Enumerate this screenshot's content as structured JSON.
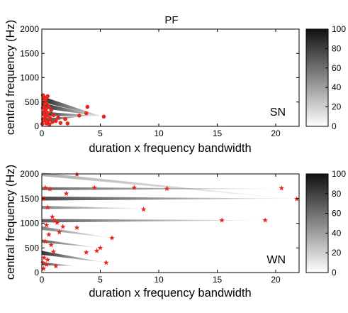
{
  "figure": {
    "title": "PF",
    "colorbar_ticks": [
      "100",
      "80",
      "60",
      "40",
      "20",
      "0"
    ]
  },
  "chart_data": [
    {
      "type": "scatter",
      "panel_label": "SN",
      "xlabel": "duration x frequency bandwidth",
      "ylabel": "central frequency (Hz)",
      "xlim": [
        0,
        22
      ],
      "ylim": [
        0,
        2000
      ],
      "xticks": [
        "0",
        "5",
        "10",
        "15",
        "20"
      ],
      "yticks": [
        "0",
        "500",
        "1000",
        "1500",
        "2000"
      ],
      "marker": "circle",
      "marker_color": "#e8261e",
      "density_shading": "grayscale 0-100",
      "wedges": [
        {
          "from": [
            0,
            560
          ],
          "to": [
            5.3,
            190
          ],
          "width": 120,
          "level": 96
        },
        {
          "from": [
            0,
            430
          ],
          "to": [
            5.2,
            200
          ],
          "width": 110,
          "level": 95
        },
        {
          "from": [
            0,
            260
          ],
          "to": [
            5.0,
            210
          ],
          "width": 90,
          "level": 92
        },
        {
          "from": [
            0,
            120
          ],
          "to": [
            4.0,
            230
          ],
          "width": 80,
          "level": 90
        }
      ],
      "points": [
        {
          "x": 0.1,
          "y": 640
        },
        {
          "x": 0.2,
          "y": 600
        },
        {
          "x": 0.3,
          "y": 560
        },
        {
          "x": 0.5,
          "y": 620
        },
        {
          "x": 0.15,
          "y": 520
        },
        {
          "x": 0.4,
          "y": 480
        },
        {
          "x": 0.25,
          "y": 430
        },
        {
          "x": 0.6,
          "y": 400
        },
        {
          "x": 0.1,
          "y": 380
        },
        {
          "x": 0.35,
          "y": 350
        },
        {
          "x": 0.8,
          "y": 330
        },
        {
          "x": 0.2,
          "y": 300
        },
        {
          "x": 0.5,
          "y": 280
        },
        {
          "x": 0.15,
          "y": 250
        },
        {
          "x": 0.45,
          "y": 220
        },
        {
          "x": 0.3,
          "y": 190
        },
        {
          "x": 0.7,
          "y": 170
        },
        {
          "x": 0.1,
          "y": 150
        },
        {
          "x": 0.25,
          "y": 120
        },
        {
          "x": 0.5,
          "y": 100
        },
        {
          "x": 0.9,
          "y": 90
        },
        {
          "x": 1.2,
          "y": 110
        },
        {
          "x": 0.4,
          "y": 60
        },
        {
          "x": 1.6,
          "y": 70
        },
        {
          "x": 2.2,
          "y": 60
        },
        {
          "x": 1.0,
          "y": 230
        },
        {
          "x": 3.2,
          "y": 220
        },
        {
          "x": 3.8,
          "y": 270
        },
        {
          "x": 3.9,
          "y": 400
        },
        {
          "x": 5.3,
          "y": 200
        },
        {
          "x": 2.0,
          "y": 150
        },
        {
          "x": 1.4,
          "y": 180
        },
        {
          "x": 0.05,
          "y": 50
        },
        {
          "x": 0.65,
          "y": 40
        }
      ]
    },
    {
      "type": "scatter",
      "panel_label": "WN",
      "xlabel": "duration x frequency bandwidth",
      "ylabel": "central frequency (Hz)",
      "xlim": [
        0,
        22
      ],
      "ylim": [
        0,
        2000
      ],
      "xticks": [
        "0",
        "5",
        "10",
        "15",
        "20"
      ],
      "yticks": [
        "0",
        "500",
        "1000",
        "1500",
        "2000"
      ],
      "marker": "star",
      "marker_color": "#e8261e",
      "density_shading": "grayscale 0-100",
      "wedges": [
        {
          "from": [
            0,
            1990
          ],
          "to": [
            22,
            1480
          ],
          "width": 70,
          "level": 35
        },
        {
          "from": [
            0,
            1700
          ],
          "to": [
            21,
            1700
          ],
          "width": 60,
          "level": 65
        },
        {
          "from": [
            0,
            1500
          ],
          "to": [
            22,
            1500
          ],
          "width": 80,
          "level": 80
        },
        {
          "from": [
            0,
            1320
          ],
          "to": [
            9,
            1300
          ],
          "width": 60,
          "level": 55
        },
        {
          "from": [
            0,
            1050
          ],
          "to": [
            19,
            1060
          ],
          "width": 70,
          "level": 70
        },
        {
          "from": [
            0,
            900
          ],
          "to": [
            6,
            700
          ],
          "width": 70,
          "level": 55
        },
        {
          "from": [
            0,
            640
          ],
          "to": [
            5,
            500
          ],
          "width": 60,
          "level": 70
        },
        {
          "from": [
            0,
            400
          ],
          "to": [
            5.5,
            200
          ],
          "width": 80,
          "level": 90
        },
        {
          "from": [
            0,
            180
          ],
          "to": [
            3,
            130
          ],
          "width": 60,
          "level": 85
        }
      ],
      "points": [
        {
          "x": 3.0,
          "y": 1990
        },
        {
          "x": 0.3,
          "y": 1720
        },
        {
          "x": 0.7,
          "y": 1690
        },
        {
          "x": 4.5,
          "y": 1720
        },
        {
          "x": 7.9,
          "y": 1720
        },
        {
          "x": 10.7,
          "y": 1700
        },
        {
          "x": 20.5,
          "y": 1710
        },
        {
          "x": 21.8,
          "y": 1490
        },
        {
          "x": 2.1,
          "y": 1600
        },
        {
          "x": 0.2,
          "y": 1500
        },
        {
          "x": 0.5,
          "y": 1320
        },
        {
          "x": 8.7,
          "y": 1280
        },
        {
          "x": 0.9,
          "y": 1130
        },
        {
          "x": 1.1,
          "y": 1050
        },
        {
          "x": 1.3,
          "y": 1010
        },
        {
          "x": 0.4,
          "y": 960
        },
        {
          "x": 1.8,
          "y": 930
        },
        {
          "x": 3.0,
          "y": 910
        },
        {
          "x": 15.4,
          "y": 1060
        },
        {
          "x": 19.1,
          "y": 1060
        },
        {
          "x": 1.5,
          "y": 820
        },
        {
          "x": 0.6,
          "y": 770
        },
        {
          "x": 6.0,
          "y": 700
        },
        {
          "x": 0.3,
          "y": 630
        },
        {
          "x": 0.8,
          "y": 560
        },
        {
          "x": 5.0,
          "y": 500
        },
        {
          "x": 4.7,
          "y": 440
        },
        {
          "x": 1.0,
          "y": 420
        },
        {
          "x": 3.8,
          "y": 410
        },
        {
          "x": 0.2,
          "y": 300
        },
        {
          "x": 0.5,
          "y": 260
        },
        {
          "x": 0.1,
          "y": 200
        },
        {
          "x": 0.4,
          "y": 160
        },
        {
          "x": 1.2,
          "y": 130
        },
        {
          "x": 5.5,
          "y": 200
        },
        {
          "x": 0.15,
          "y": 80
        }
      ]
    }
  ]
}
